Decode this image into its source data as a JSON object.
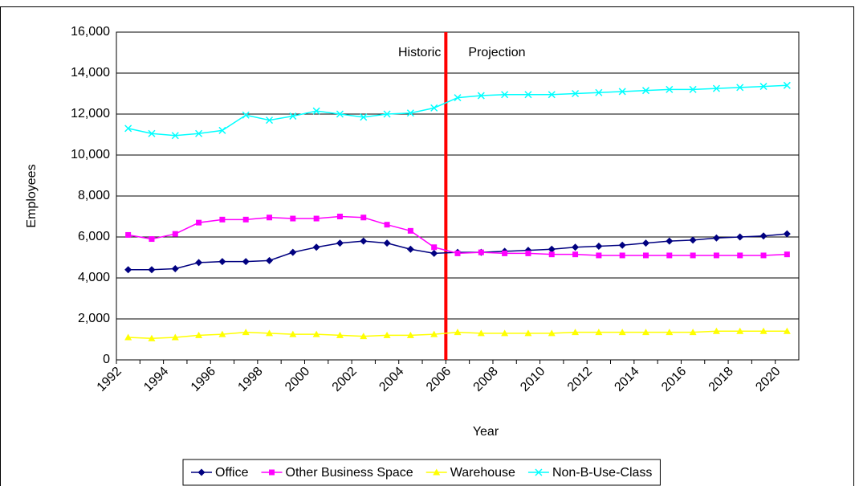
{
  "chart_data": {
    "type": "line",
    "x_label": "Year",
    "y_label": "Employees",
    "categories": [
      "1992",
      null,
      "1994",
      null,
      "1996",
      null,
      "1998",
      null,
      "2000",
      null,
      "2002",
      null,
      "2004",
      null,
      "2006",
      null,
      "2008",
      null,
      "2010",
      null,
      "2012",
      null,
      "2014",
      null,
      "2016",
      null,
      "2018",
      null,
      "2020"
    ],
    "series": [
      {
        "name": "Office",
        "color": "#000080",
        "marker": "diamond",
        "values": [
          4400,
          4400,
          4450,
          4750,
          4800,
          4800,
          4850,
          5250,
          5500,
          5700,
          5800,
          5700,
          5400,
          5200,
          5250,
          5250,
          5300,
          5350,
          5400,
          5500,
          5550,
          5600,
          5700,
          5800,
          5850,
          5950,
          6000,
          6050,
          6150
        ]
      },
      {
        "name": "Other Business Space",
        "color": "#ff00ff",
        "marker": "square",
        "values": [
          6100,
          5900,
          6150,
          6700,
          6850,
          6850,
          6950,
          6900,
          6900,
          7000,
          6950,
          6600,
          6300,
          5500,
          5200,
          5250,
          5200,
          5200,
          5150,
          5150,
          5100,
          5100,
          5100,
          5100,
          5100,
          5100,
          5100,
          5100,
          5150
        ]
      },
      {
        "name": "Warehouse",
        "color": "#ffff00",
        "marker": "triangle",
        "values": [
          1100,
          1050,
          1100,
          1200,
          1250,
          1350,
          1300,
          1250,
          1250,
          1200,
          1150,
          1200,
          1200,
          1250,
          1350,
          1300,
          1300,
          1300,
          1300,
          1350,
          1350,
          1350,
          1350,
          1350,
          1350,
          1400,
          1400,
          1400,
          1400
        ]
      },
      {
        "name": "Non-B-Use-Class",
        "color": "#00ffff",
        "marker": "x",
        "values": [
          11300,
          11050,
          10950,
          11050,
          11200,
          11950,
          11700,
          11900,
          12150,
          12000,
          11850,
          12000,
          12050,
          12300,
          12800,
          12900,
          12950,
          12950,
          12950,
          13000,
          13050,
          13100,
          13150,
          13200,
          13200,
          13250,
          13300,
          13350,
          13400
        ]
      }
    ],
    "ylim": [
      0,
      16000
    ],
    "yticks": [
      0,
      {
        "value": 2000,
        "label": "2,000"
      },
      {
        "value": 4000,
        "label": "4,000"
      },
      {
        "value": 6000,
        "label": "6,000"
      },
      {
        "value": 8000,
        "label": "8,000"
      },
      {
        "value": 10000,
        "label": "10,000"
      },
      {
        "value": 12000,
        "label": "12,000"
      },
      {
        "value": 14000,
        "label": "14,000"
      },
      {
        "value": 16000,
        "label": "16,000"
      }
    ],
    "grid": true,
    "divider": {
      "at_index": 14,
      "color": "#ff0000",
      "left_label": "Historic",
      "right_label": "Projection"
    },
    "legend": "bottom"
  }
}
